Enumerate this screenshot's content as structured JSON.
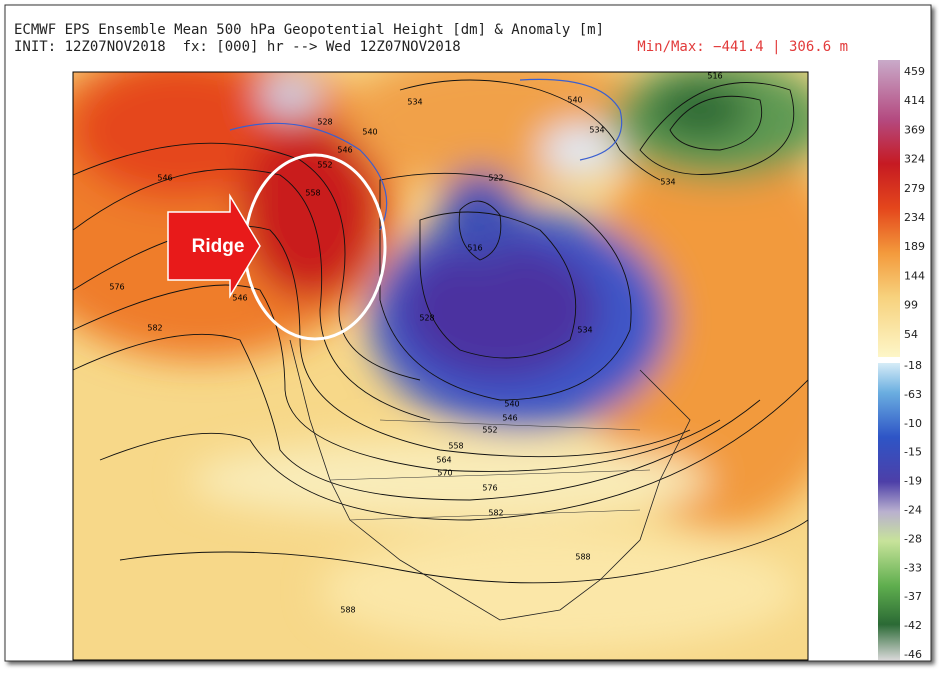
{
  "header": {
    "title": "ECMWF EPS Ensemble Mean 500 hPa Geopotential Height [dm] & Anomaly [m]",
    "init": "INIT: 12Z07NOV2018  fx: [000] hr --> Wed 12Z07NOV2018",
    "minmax": "Min/Max: −441.4 | 306.6 m"
  },
  "annotation": "Ridge",
  "colorbar": {
    "upper": [
      "459",
      "414",
      "369",
      "324",
      "279",
      "234",
      "189",
      "144",
      "99",
      "54"
    ],
    "lower": [
      "-18",
      "-63",
      "-10",
      "-15",
      "-19",
      "-24",
      "-28",
      "-33",
      "-37",
      "-42",
      "-46"
    ]
  },
  "contour_labels": [
    "534",
    "528",
    "540",
    "546",
    "552",
    "558",
    "546",
    "576",
    "582",
    "522",
    "516",
    "528",
    "534",
    "540",
    "546",
    "552",
    "558",
    "564",
    "570",
    "576",
    "582",
    "588",
    "588",
    "534",
    "540",
    "534",
    "516",
    "546"
  ]
}
